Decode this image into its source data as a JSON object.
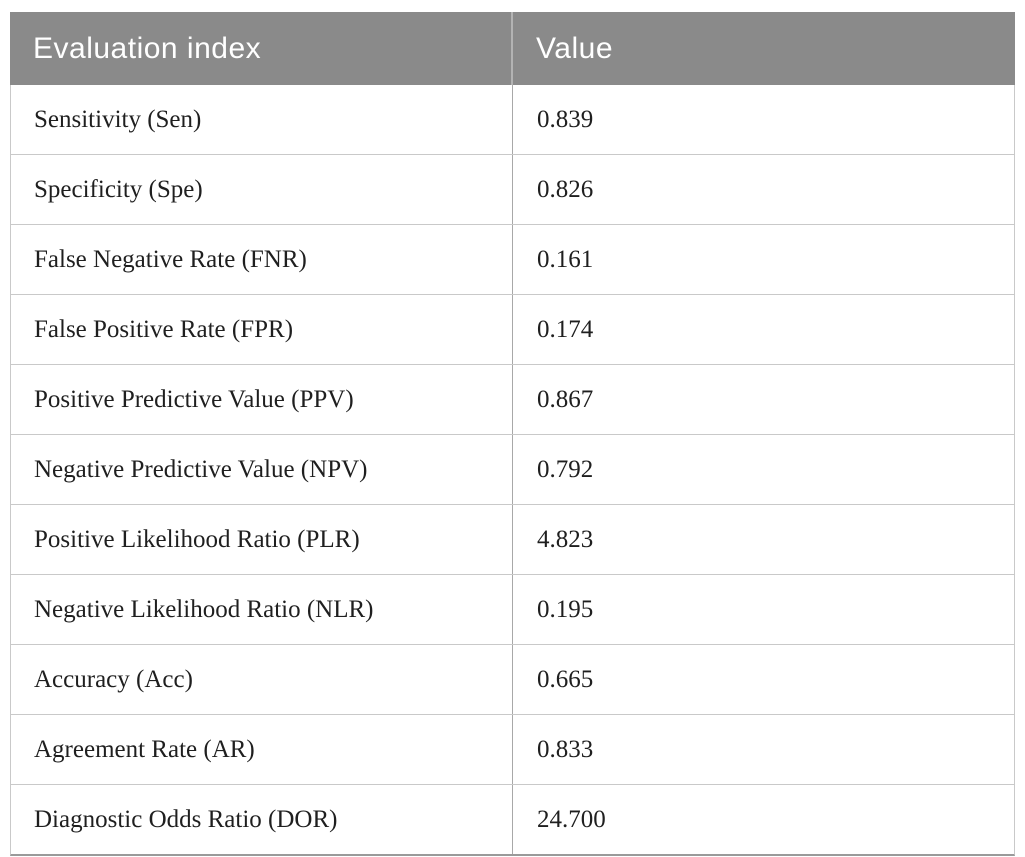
{
  "table": {
    "header": {
      "index_label": "Evaluation index",
      "value_label": "Value"
    },
    "rows": [
      {
        "index": "Sensitivity (Sen)",
        "value": "0.839"
      },
      {
        "index": "Specificity (Spe)",
        "value": "0.826"
      },
      {
        "index": "False Negative Rate (FNR)",
        "value": "0.161"
      },
      {
        "index": "False Positive Rate (FPR)",
        "value": "0.174"
      },
      {
        "index": "Positive Predictive Value (PPV)",
        "value": "0.867"
      },
      {
        "index": "Negative Predictive Value (NPV)",
        "value": "0.792"
      },
      {
        "index": "Positive Likelihood Ratio (PLR)",
        "value": "4.823"
      },
      {
        "index": "Negative Likelihood Ratio (NLR)",
        "value": "0.195"
      },
      {
        "index": "Accuracy (Acc)",
        "value": "0.665"
      },
      {
        "index": "Agreement Rate (AR)",
        "value": "0.833"
      },
      {
        "index": "Diagnostic Odds Ratio (DOR)",
        "value": "24.700"
      }
    ],
    "colors": {
      "header_bg": "#8a8a8a",
      "header_text": "#ffffff",
      "row_border": "#c9c9c9",
      "column_divider": "#a8a8a8",
      "bottom_border": "#9a9a9a",
      "body_text": "#1f1f1f"
    }
  }
}
